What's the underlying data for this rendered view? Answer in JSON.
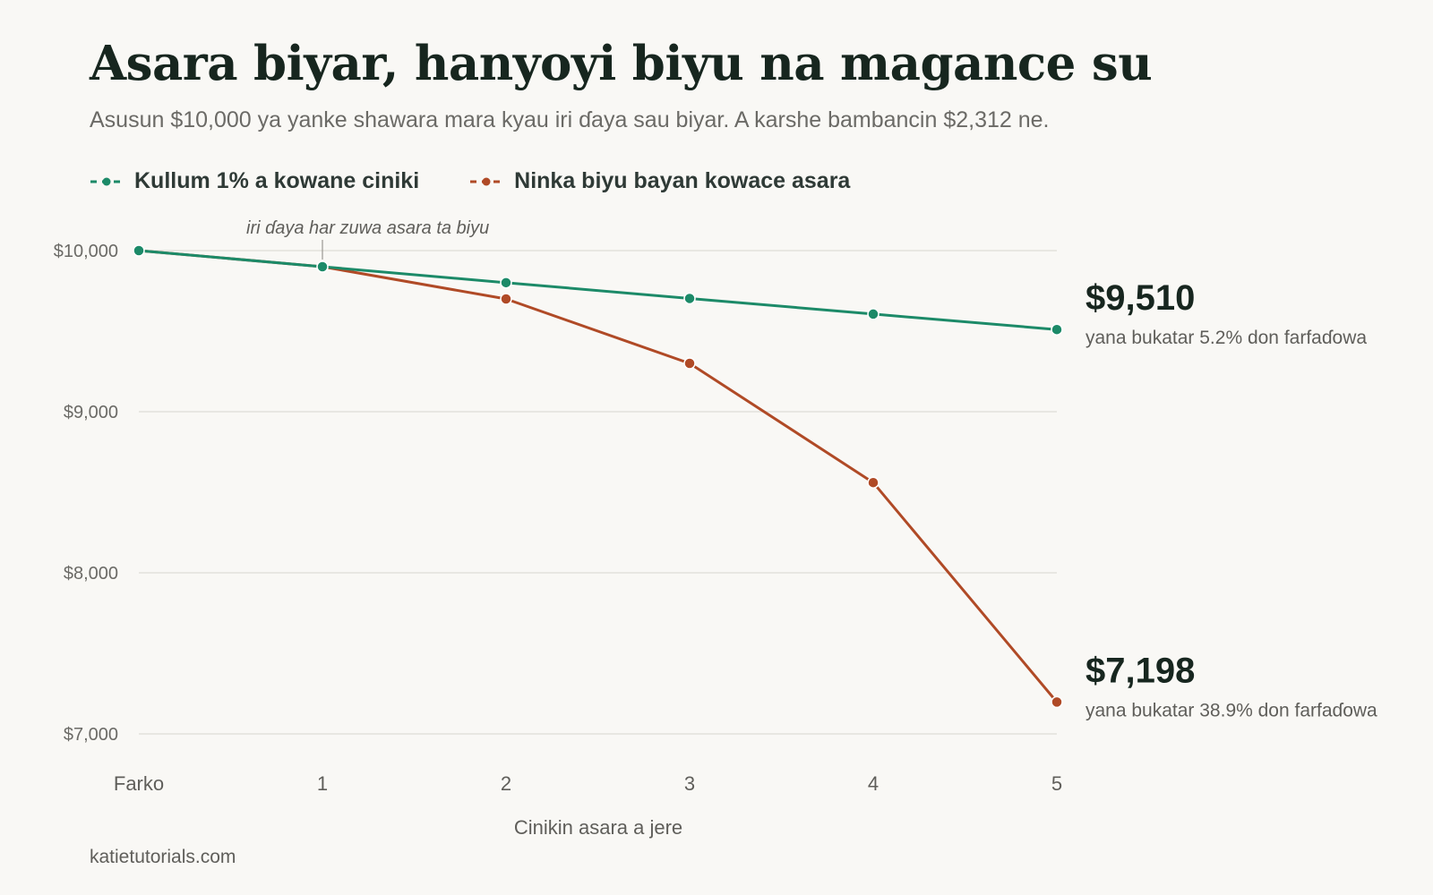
{
  "title": "Asara biyar, hanyoyi biyu na magance su",
  "subtitle": "Asusun $10,000 ya yanke shawara mara kyau iri ɗaya sau biyar. A karshe bambancin $2,312 ne.",
  "source": "katietutorials.com",
  "colors": {
    "green": "#1c8a68",
    "red": "#b04a26",
    "grid": "#e3e1dc",
    "text": "#1d2a26",
    "muted": "#6b6a66"
  },
  "chart_data": {
    "type": "line",
    "categories": [
      "Farko",
      "1",
      "2",
      "3",
      "4",
      "5"
    ],
    "xlabel": "Cinikin asara a jere",
    "ylabel": "",
    "ylim": [
      7000,
      10000
    ],
    "y_ticks": [
      10000,
      9000,
      8000,
      7000
    ],
    "y_tick_labels": [
      "$10,000",
      "$9,000",
      "$8,000",
      "$7,000"
    ],
    "grid": true,
    "legend_position": "top-left",
    "series": [
      {
        "name": "Kullum 1% a kowane ciniki",
        "color": "#1c8a68",
        "values": [
          10000,
          9900,
          9801,
          9703,
          9606,
          9510
        ],
        "end_value_label": "$9,510",
        "end_note": "yana bukatar 5.2% don farfaɗowa"
      },
      {
        "name": "Ninka biyu bayan kowace asara",
        "color": "#b04a26",
        "values": [
          10000,
          9900,
          9700,
          9300,
          8560,
          7198
        ],
        "end_value_label": "$7,198",
        "end_note": "yana bukatar 38.9% don farfaɗowa"
      }
    ],
    "annotations": [
      {
        "text": "iri ɗaya har zuwa asara ta biyu",
        "category_index": 1,
        "value": 9900
      }
    ]
  }
}
